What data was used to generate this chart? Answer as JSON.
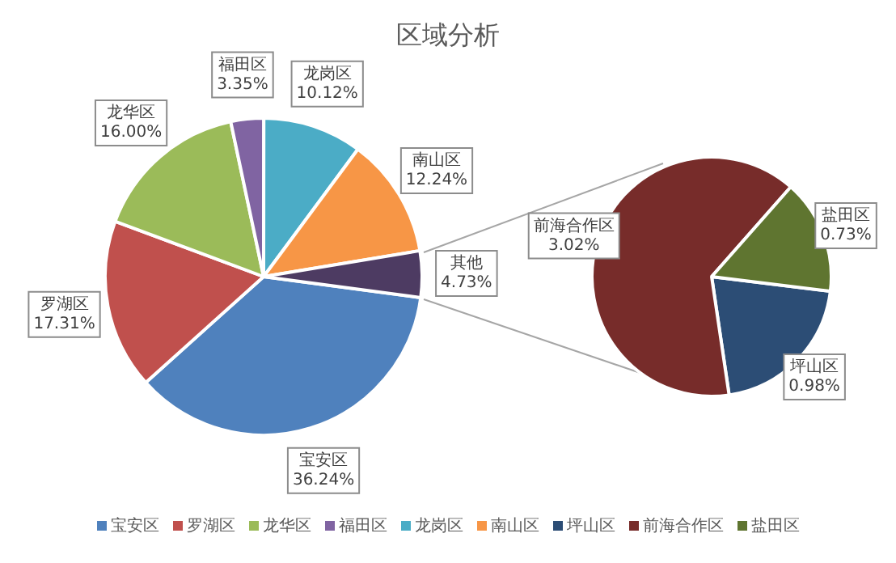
{
  "chart_data": [
    {
      "type": "pie",
      "title": "区域分析",
      "categories": [
        "宝安区",
        "罗湖区",
        "龙华区",
        "福田区",
        "龙岗区",
        "南山区",
        "其他"
      ],
      "values": [
        36.24,
        17.31,
        16.0,
        3.35,
        10.12,
        12.24,
        4.73
      ],
      "colors": [
        "#4f81bd",
        "#c0504d",
        "#9bbb59",
        "#8064a2",
        "#4bacc6",
        "#f79646",
        "#4d3b62"
      ],
      "value_labels": [
        "36.24%",
        "17.31%",
        "16.00%",
        "3.35%",
        "10.12%",
        "12.24%",
        "4.73%"
      ],
      "legend": "bottom"
    },
    {
      "type": "pie",
      "categories": [
        "坪山区",
        "前海合作区",
        "盐田区"
      ],
      "values": [
        0.98,
        3.02,
        0.73
      ],
      "colors": [
        "#2c4d75",
        "#772c2a",
        "#5f7530"
      ],
      "value_labels": [
        "0.98%",
        "3.02%",
        "0.73%"
      ],
      "legend": "bottom"
    }
  ]
}
